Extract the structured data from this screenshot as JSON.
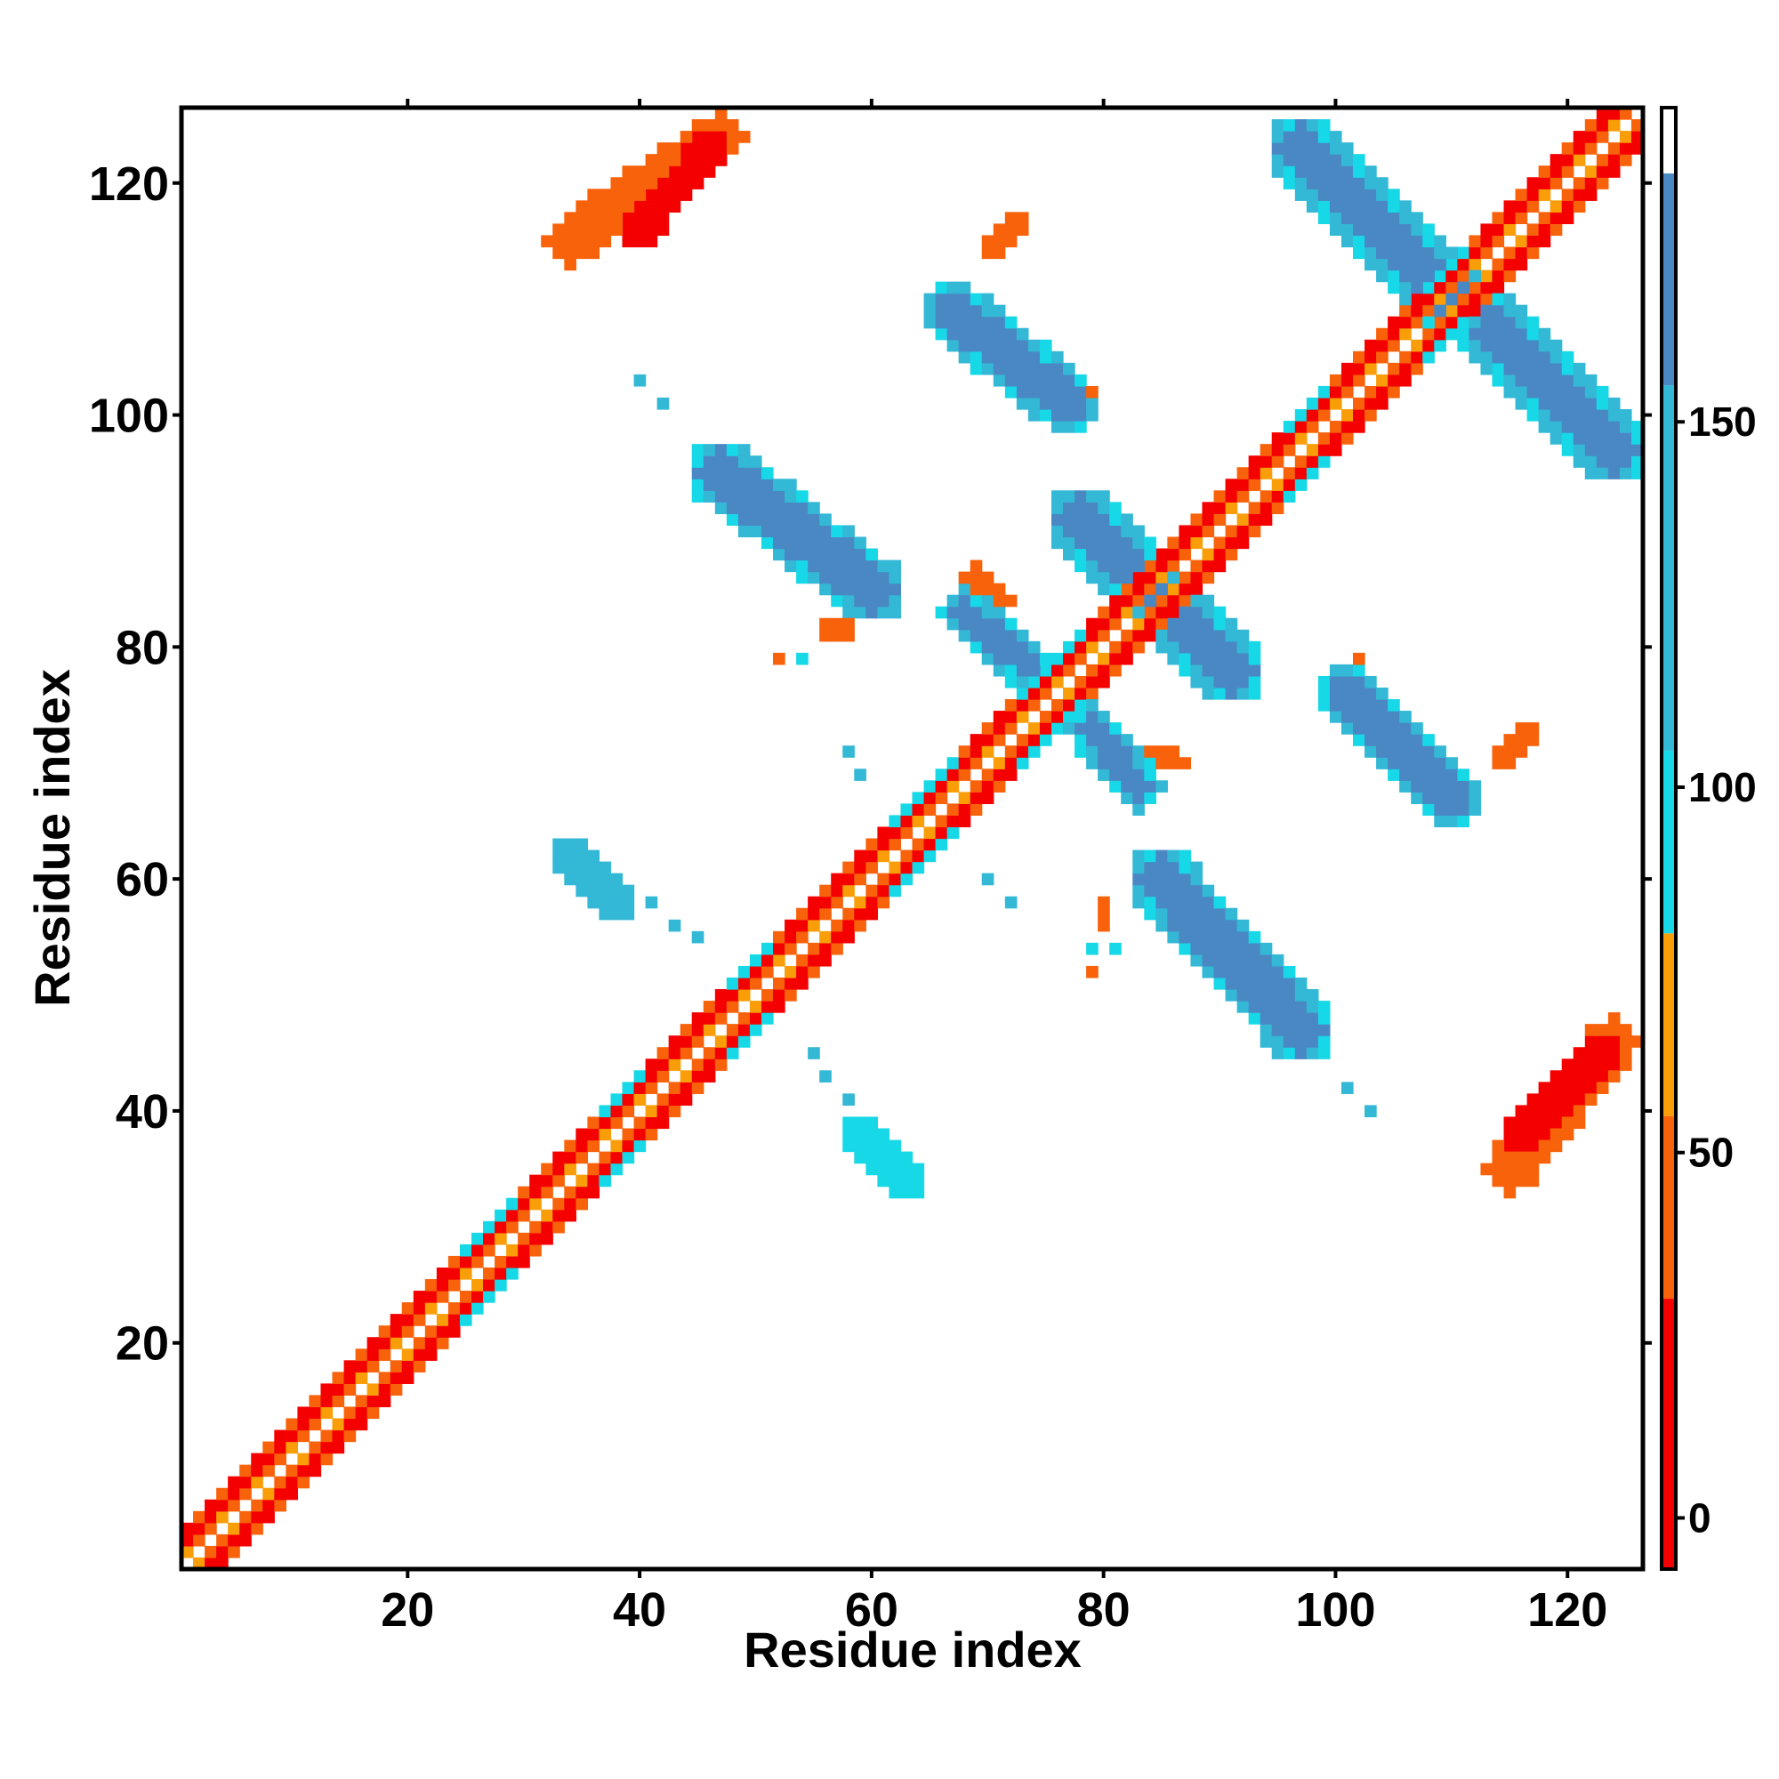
{
  "chart_data": {
    "type": "heatmap",
    "title": "",
    "xlabel": "Residue index",
    "ylabel": "Residue index",
    "xlim": [
      1,
      126
    ],
    "ylim": [
      1,
      126
    ],
    "x_ticks": [
      20,
      40,
      60,
      80,
      100,
      120
    ],
    "y_ticks": [
      20,
      40,
      60,
      80,
      100,
      120
    ],
    "colorbar": {
      "ticks": [
        0,
        50,
        100,
        150
      ],
      "range": [
        -7,
        193
      ],
      "bands": [
        {
          "from": -7,
          "to": 30,
          "color": "#f40000"
        },
        {
          "from": 30,
          "to": 55,
          "color": "#f7620a"
        },
        {
          "from": 55,
          "to": 80,
          "color": "#f99e08"
        },
        {
          "from": 80,
          "to": 105,
          "color": "#17d8e6"
        },
        {
          "from": 105,
          "to": 155,
          "color": "#33b8d6"
        },
        {
          "from": 155,
          "to": 184,
          "color": "#4a88c4"
        },
        {
          "from": 184,
          "to": 193,
          "color": "#ffffff"
        }
      ]
    },
    "grid": false,
    "colors": {
      "red": "#f40000",
      "orange": "#f7620a",
      "lightorange": "#f99e08",
      "cyan": "#17d8e6",
      "lightblue": "#33b8d6",
      "blue": "#4a88c4"
    },
    "diagonal_band": {
      "x_start": 1,
      "x_end": 126,
      "half_width": 3
    },
    "blobs": [
      {
        "x1": 40,
        "y1": 116,
        "x2": 46,
        "y2": 123,
        "halfw": 1.6,
        "color": "red"
      },
      {
        "x1": 34,
        "y1": 115,
        "x2": 47,
        "y2": 124,
        "halfw": 2.2,
        "color": "orange"
      },
      {
        "x1": 116,
        "y1": 38,
        "x2": 123,
        "y2": 45,
        "halfw": 1.6,
        "color": "red"
      },
      {
        "x1": 115,
        "y1": 35,
        "x2": 124,
        "y2": 46,
        "halfw": 2.2,
        "color": "orange"
      },
      {
        "x1": 70,
        "y1": 114,
        "x2": 73,
        "y2": 117,
        "halfw": 0.8,
        "color": "orange"
      },
      {
        "x1": 97,
        "y1": 123,
        "x2": 110,
        "y2": 110,
        "halfw": 2.0,
        "color": "blue"
      },
      {
        "x1": 111,
        "y1": 110,
        "x2": 124,
        "y2": 97,
        "halfw": 2.0,
        "color": "blue"
      },
      {
        "x1": 67,
        "y1": 109,
        "x2": 77,
        "y2": 101,
        "halfw": 1.8,
        "color": "blue"
      },
      {
        "x1": 47,
        "y1": 95,
        "x2": 60,
        "y2": 85,
        "halfw": 2.0,
        "color": "blue"
      },
      {
        "x1": 78,
        "y1": 91,
        "x2": 91,
        "y2": 78,
        "halfw": 2.0,
        "color": "blue"
      },
      {
        "x1": 68,
        "y1": 83,
        "x2": 74,
        "y2": 78,
        "halfw": 1.2,
        "color": "blue"
      },
      {
        "x1": 79,
        "y1": 73,
        "x2": 83,
        "y2": 68,
        "halfw": 1.2,
        "color": "blue"
      },
      {
        "x1": 101,
        "y1": 76,
        "x2": 110,
        "y2": 67,
        "halfw": 1.8,
        "color": "blue"
      },
      {
        "x1": 85,
        "y1": 60,
        "x2": 97,
        "y2": 47,
        "halfw": 2.0,
        "color": "blue"
      },
      {
        "x1": 34,
        "y1": 62,
        "x2": 38,
        "y2": 58,
        "halfw": 1.5,
        "color": "lightblue"
      },
      {
        "x1": 59,
        "y1": 38,
        "x2": 63,
        "y2": 34,
        "halfw": 1.5,
        "color": "cyan"
      },
      {
        "x1": 69,
        "y1": 86,
        "x2": 71,
        "y2": 84,
        "halfw": 1.0,
        "color": "orange"
      },
      {
        "x1": 56,
        "y1": 82,
        "x2": 58,
        "y2": 81,
        "halfw": 0.9,
        "color": "orange"
      },
      {
        "x1": 84,
        "y1": 71,
        "x2": 87,
        "y2": 70,
        "halfw": 0.9,
        "color": "orange"
      },
      {
        "x1": 114,
        "y1": 70,
        "x2": 117,
        "y2": 73,
        "halfw": 0.9,
        "color": "orange"
      },
      {
        "x1": 80,
        "y1": 58,
        "x2": 80,
        "y2": 56,
        "halfw": 0.9,
        "color": "orange"
      }
    ],
    "points": [
      {
        "x": 40,
        "y": 103,
        "color": "lightblue"
      },
      {
        "x": 42,
        "y": 101,
        "color": "lightblue"
      },
      {
        "x": 58,
        "y": 71,
        "color": "lightblue"
      },
      {
        "x": 59,
        "y": 69,
        "color": "lightblue"
      },
      {
        "x": 41,
        "y": 58,
        "color": "lightblue"
      },
      {
        "x": 43,
        "y": 56,
        "color": "lightblue"
      },
      {
        "x": 45,
        "y": 55,
        "color": "lightblue"
      },
      {
        "x": 55,
        "y": 45,
        "color": "lightblue"
      },
      {
        "x": 56,
        "y": 43,
        "color": "lightblue"
      },
      {
        "x": 58,
        "y": 41,
        "color": "lightblue"
      },
      {
        "x": 70,
        "y": 60,
        "color": "lightblue"
      },
      {
        "x": 72,
        "y": 58,
        "color": "lightblue"
      },
      {
        "x": 101,
        "y": 42,
        "color": "lightblue"
      },
      {
        "x": 103,
        "y": 40,
        "color": "lightblue"
      },
      {
        "x": 123,
        "y": 95,
        "color": "lightblue"
      },
      {
        "x": 79,
        "y": 102,
        "color": "orange"
      },
      {
        "x": 52,
        "y": 79,
        "color": "orange"
      },
      {
        "x": 102,
        "y": 79,
        "color": "orange"
      },
      {
        "x": 79,
        "y": 52,
        "color": "orange"
      },
      {
        "x": 54,
        "y": 79,
        "color": "cyan"
      },
      {
        "x": 79,
        "y": 54,
        "color": "cyan"
      },
      {
        "x": 81,
        "y": 54,
        "color": "cyan"
      }
    ]
  }
}
